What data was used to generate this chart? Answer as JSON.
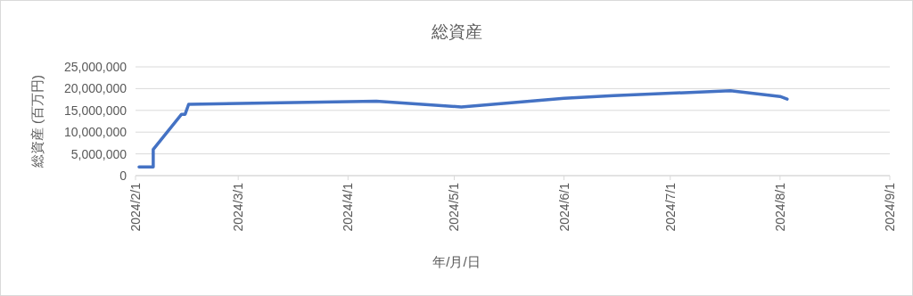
{
  "chart_data": {
    "type": "line",
    "title": "総資産",
    "xlabel": "年/月/日",
    "ylabel": "総資産 (百万円)",
    "series": [
      {
        "color": "#4472c4",
        "x": [
          "2024-02-02",
          "2024-02-06",
          "2024-02-06",
          "2024-02-14",
          "2024-02-15",
          "2024-02-16",
          "2024-04-09",
          "2024-05-03",
          "2024-06-01",
          "2024-06-15",
          "2024-07-18",
          "2024-08-01",
          "2024-08-03"
        ],
        "values": [
          2000000,
          2000000,
          6000000,
          14100000,
          14100000,
          16400000,
          17100000,
          15800000,
          17800000,
          18400000,
          19500000,
          18200000,
          17600000
        ]
      }
    ],
    "xlim": [
      "2024-02-01",
      "2024-09-01"
    ],
    "xticks": [
      {
        "value": "2024-02-01",
        "label": "2024/2/1"
      },
      {
        "value": "2024-03-01",
        "label": "2024/3/1"
      },
      {
        "value": "2024-04-01",
        "label": "2024/4/1"
      },
      {
        "value": "2024-05-01",
        "label": "2024/5/1"
      },
      {
        "value": "2024-06-01",
        "label": "2024/6/1"
      },
      {
        "value": "2024-07-01",
        "label": "2024/7/1"
      },
      {
        "value": "2024-08-01",
        "label": "2024/8/1"
      },
      {
        "value": "2024-09-01",
        "label": "2024/9/1"
      }
    ],
    "ylim": [
      0,
      25000000
    ],
    "yticks": [
      {
        "value": 0,
        "label": "0"
      },
      {
        "value": 5000000,
        "label": "5,000,000"
      },
      {
        "value": 10000000,
        "label": "10,000,000"
      },
      {
        "value": 15000000,
        "label": "15,000,000"
      },
      {
        "value": 20000000,
        "label": "20,000,000"
      },
      {
        "value": 25000000,
        "label": "25,000,000"
      }
    ],
    "grid": "y",
    "marker": "none",
    "line_style": "solid"
  }
}
